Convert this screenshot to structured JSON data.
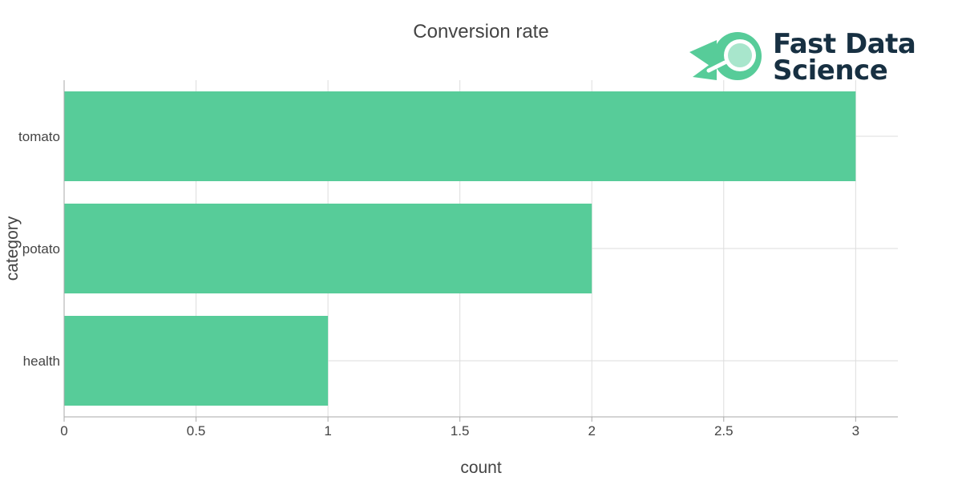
{
  "chart_data": {
    "type": "bar",
    "orientation": "horizontal",
    "title": "Conversion rate",
    "xlabel": "count",
    "ylabel": "category",
    "categories": [
      "tomato",
      "potato",
      "health"
    ],
    "values": [
      3,
      2,
      1
    ],
    "xlim": [
      0,
      3.16
    ],
    "xticks": [
      0,
      0.5,
      1,
      1.5,
      2,
      2.5,
      3
    ],
    "xtick_labels": [
      "0",
      "0.5",
      "1",
      "1.5",
      "2",
      "2.5",
      "3"
    ],
    "grid": true,
    "bar_color": "#57CC99"
  },
  "logo": {
    "line1": "Fast Data",
    "line2": "Science",
    "colors": {
      "text": "#173042",
      "accent": "#57CC99",
      "accent_light": "#A8E6CC"
    }
  }
}
